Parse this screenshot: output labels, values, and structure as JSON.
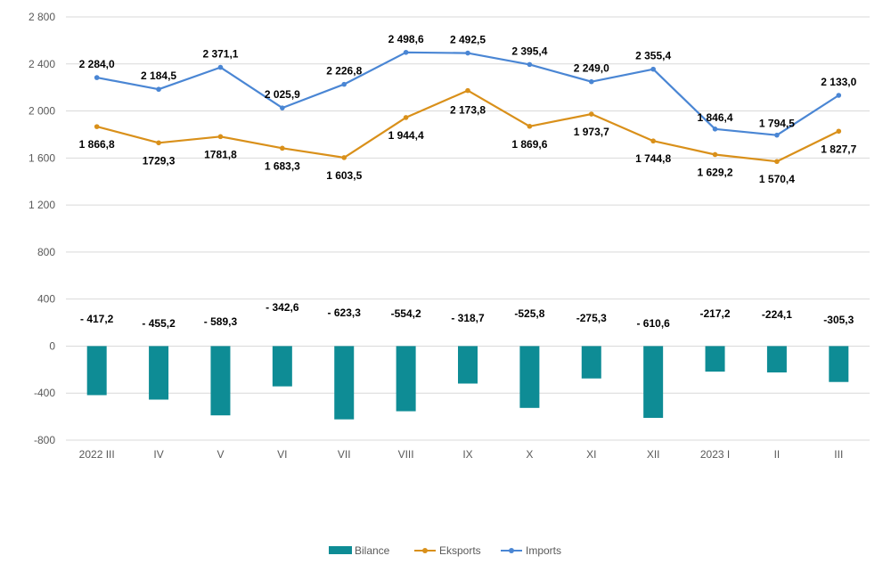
{
  "chart_data": {
    "type": "bar+line",
    "categories": [
      "2022 III",
      "IV",
      "V",
      "VI",
      "VII",
      "VIII",
      "IX",
      "X",
      "XI",
      "XII",
      "2023 I",
      "II",
      "III"
    ],
    "ylim": [
      -800,
      2800
    ],
    "yticks": [
      -800,
      -400,
      0,
      400,
      800,
      1200,
      1600,
      2000,
      2400,
      2800
    ],
    "ytick_labels": [
      "-800",
      "-400",
      "0",
      "400",
      "800",
      "1 200",
      "1 600",
      "2 000",
      "2 400",
      "2 800"
    ],
    "grid": true,
    "legend_position": "bottom",
    "series": [
      {
        "name": "Bilance",
        "kind": "bar",
        "color": "#0e8c95",
        "values": [
          -417.2,
          -455.2,
          -589.3,
          -342.6,
          -623.3,
          -554.2,
          -318.7,
          -525.8,
          -275.3,
          -610.6,
          -217.2,
          -224.1,
          -305.3
        ],
        "labels": [
          "- 417,2",
          "- 455,2",
          "- 589,3",
          "- 342,6",
          "- 623,3",
          "-554,2",
          "- 318,7",
          "-525,8",
          "-275,3",
          "- 610,6",
          "-217,2",
          "-224,1",
          "-305,3"
        ]
      },
      {
        "name": "Eksports",
        "kind": "line",
        "color": "#d9901a",
        "values": [
          1866.8,
          1729.3,
          1781.8,
          1683.3,
          1603.5,
          1944.4,
          2173.8,
          1869.6,
          1973.7,
          1744.8,
          1629.2,
          1570.4,
          1827.7
        ],
        "labels": [
          "1 866,8",
          "1729,3",
          "1781,8",
          "1 683,3",
          "1 603,5",
          "1 944,4",
          "2 173,8",
          "1 869,6",
          "1 973,7",
          "1 744,8",
          "1 629,2",
          "1 570,4",
          "1 827,7"
        ]
      },
      {
        "name": "Imports",
        "kind": "line",
        "color": "#4a86d4",
        "values": [
          2284.0,
          2184.5,
          2371.1,
          2025.9,
          2226.8,
          2498.6,
          2492.5,
          2395.4,
          2249.0,
          2355.4,
          1846.4,
          1794.5,
          2133.0
        ],
        "labels": [
          "2 284,0",
          "2 184,5",
          "2 371,1",
          "2 025,9",
          "2 226,8",
          "2 498,6",
          "2 492,5",
          "2 395,4",
          "2 249,0",
          "2 355,4",
          "1 846,4",
          "1 794,5",
          "2 133,0"
        ]
      }
    ]
  }
}
